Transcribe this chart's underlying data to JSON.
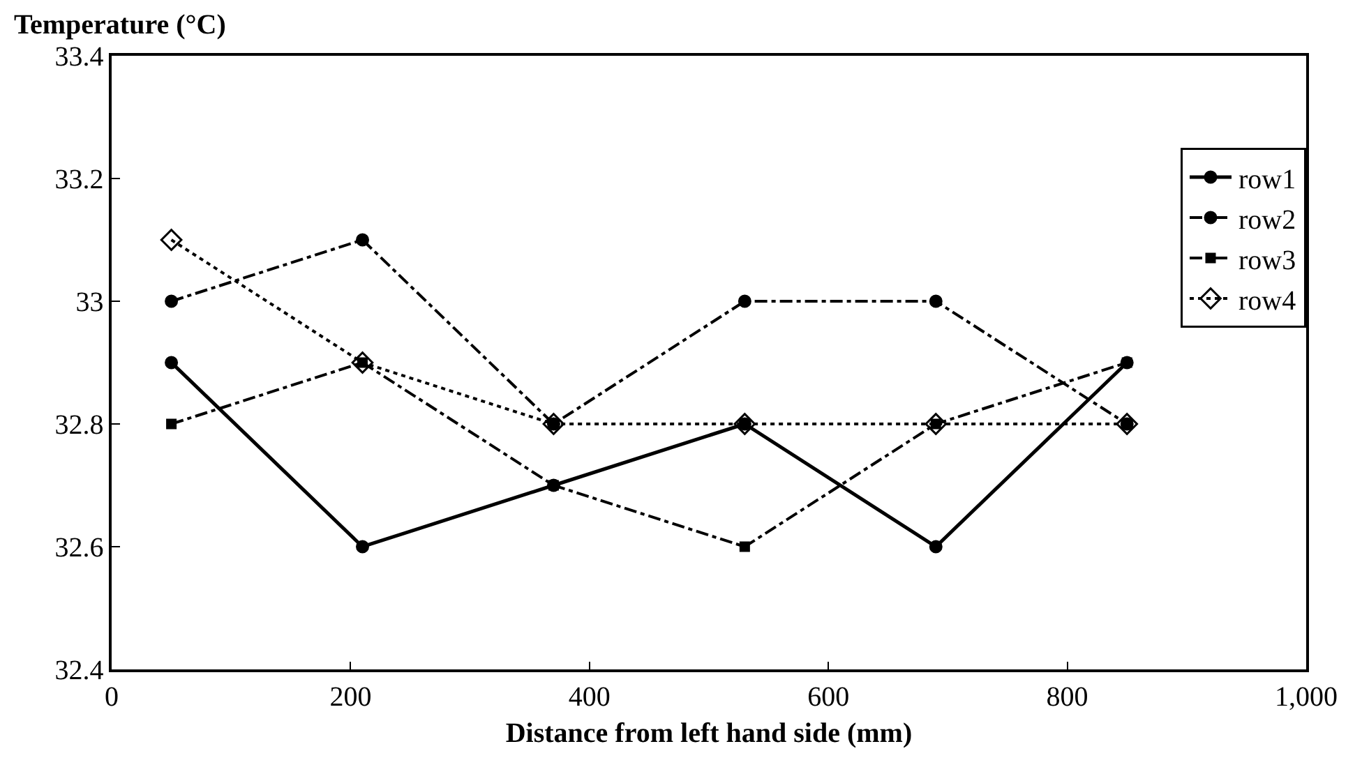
{
  "chart_data": {
    "type": "line",
    "xlabel": "Distance from left hand side (mm)",
    "ylabel": "Temperature (°C)",
    "x": [
      50,
      210,
      370,
      530,
      690,
      850
    ],
    "xlim": [
      0,
      1000
    ],
    "xticks": [
      0,
      200,
      400,
      600,
      800,
      {
        "value": 1000,
        "label": "1,000"
      }
    ],
    "ylim": [
      32.4,
      33.4
    ],
    "yticks": [
      32.4,
      32.6,
      32.8,
      33,
      33.2,
      33.4
    ],
    "grid": false,
    "legend": "right",
    "series": [
      {
        "name": "row1",
        "color": "#000000",
        "values": [
          32.9,
          32.6,
          32.7,
          32.8,
          32.6,
          32.9
        ],
        "marker": "circle",
        "line_style": "solid"
      },
      {
        "name": "row2",
        "color": "#000000",
        "values": [
          33.0,
          33.1,
          32.8,
          33.0,
          33.0,
          32.8
        ],
        "marker": "circle",
        "line_style": "dashed"
      },
      {
        "name": "row3",
        "color": "#000000",
        "values": [
          32.8,
          32.9,
          32.7,
          32.6,
          32.8,
          32.9
        ],
        "marker": "square",
        "line_style": "dashed"
      },
      {
        "name": "row4",
        "color": "#000000",
        "values": [
          33.1,
          32.9,
          32.8,
          32.8,
          32.8,
          32.8
        ],
        "marker": "diamond",
        "line_style": "dotted"
      }
    ]
  }
}
